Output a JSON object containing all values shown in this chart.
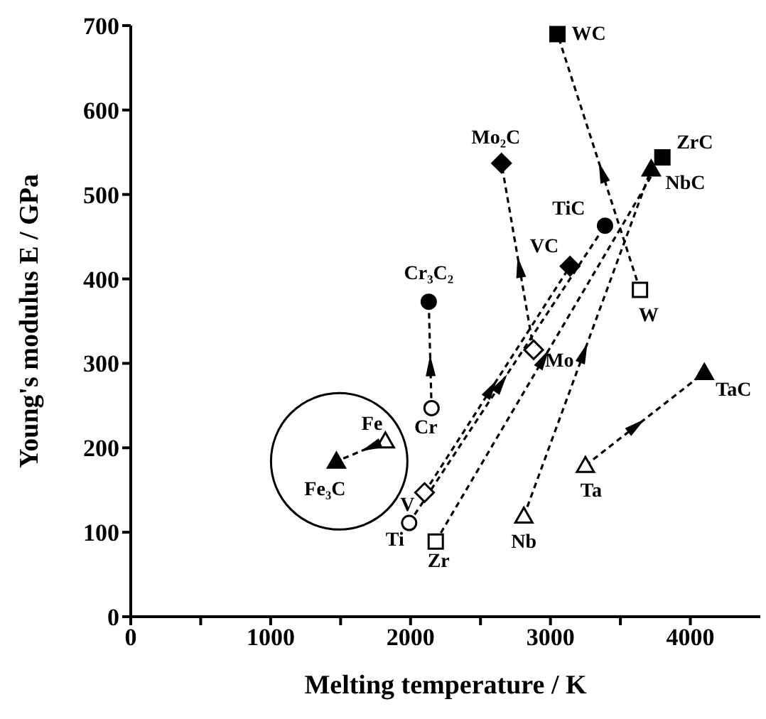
{
  "chart_data": {
    "type": "line",
    "xlabel": "Melting temperature / K",
    "ylabel": "Young's modulus E / GPa",
    "xlim": [
      0,
      4500
    ],
    "xticks": [
      0,
      {
        "value": 500,
        "label": null
      },
      1000,
      {
        "value": 1500,
        "label": null
      },
      2000,
      {
        "value": 2500,
        "label": null
      },
      3000,
      {
        "value": 3500,
        "label": null
      },
      4000
    ],
    "ylim": [
      0,
      700
    ],
    "yticks": [
      0,
      100,
      200,
      300,
      400,
      500,
      600,
      700
    ],
    "line_style": "dashed",
    "color": "#000000",
    "series": [
      {
        "x": [
          1990,
          3390
        ],
        "values": [
          111,
          463
        ],
        "marker": "circle"
      },
      {
        "x": [
          2100,
          3140
        ],
        "values": [
          147,
          415
        ],
        "marker": "diamond"
      },
      {
        "x": [
          2180,
          3800
        ],
        "values": [
          89,
          544
        ],
        "marker": "square"
      },
      {
        "x": [
          2810,
          3720
        ],
        "values": [
          119,
          530
        ],
        "marker": "triangle"
      },
      {
        "x": [
          2880,
          2650
        ],
        "values": [
          316,
          537
        ],
        "marker": "diamond"
      },
      {
        "x": [
          3640,
          3050
        ],
        "values": [
          387,
          690
        ],
        "marker": "square"
      },
      {
        "x": [
          2150,
          2130
        ],
        "values": [
          247,
          373
        ],
        "marker": "circle"
      },
      {
        "x": [
          3250,
          4100
        ],
        "values": [
          179,
          289
        ],
        "marker": "triangle"
      },
      {
        "x": [
          1820,
          1470
        ],
        "values": [
          208,
          184
        ],
        "marker": "triangle"
      }
    ],
    "annotations": [
      {
        "text": "Ti",
        "x": 1990,
        "y": 111
      },
      {
        "text": "TiC",
        "x": 3390,
        "y": 463
      },
      {
        "text": "V",
        "x": 2100,
        "y": 147
      },
      {
        "text": "VC",
        "x": 3140,
        "y": 415
      },
      {
        "text": "Zr",
        "x": 2180,
        "y": 89
      },
      {
        "text": "ZrC",
        "x": 3800,
        "y": 544
      },
      {
        "text": "Nb",
        "x": 2810,
        "y": 119
      },
      {
        "text": "NbC",
        "x": 3720,
        "y": 530
      },
      {
        "text": "Mo",
        "x": 2880,
        "y": 316
      },
      {
        "text": "Mo₂C",
        "x": 2650,
        "y": 537
      },
      {
        "text": "W",
        "x": 3640,
        "y": 387
      },
      {
        "text": "WC",
        "x": 3050,
        "y": 690
      },
      {
        "text": "Cr",
        "x": 2150,
        "y": 247
      },
      {
        "text": "Cr₃C₂",
        "x": 2130,
        "y": 373
      },
      {
        "text": "Ta",
        "x": 3250,
        "y": 179
      },
      {
        "text": "TaC",
        "x": 4100,
        "y": 289
      },
      {
        "text": "Fe",
        "x": 1820,
        "y": 208
      },
      {
        "text": "Fe₃C",
        "x": 1470,
        "y": 184
      }
    ]
  }
}
